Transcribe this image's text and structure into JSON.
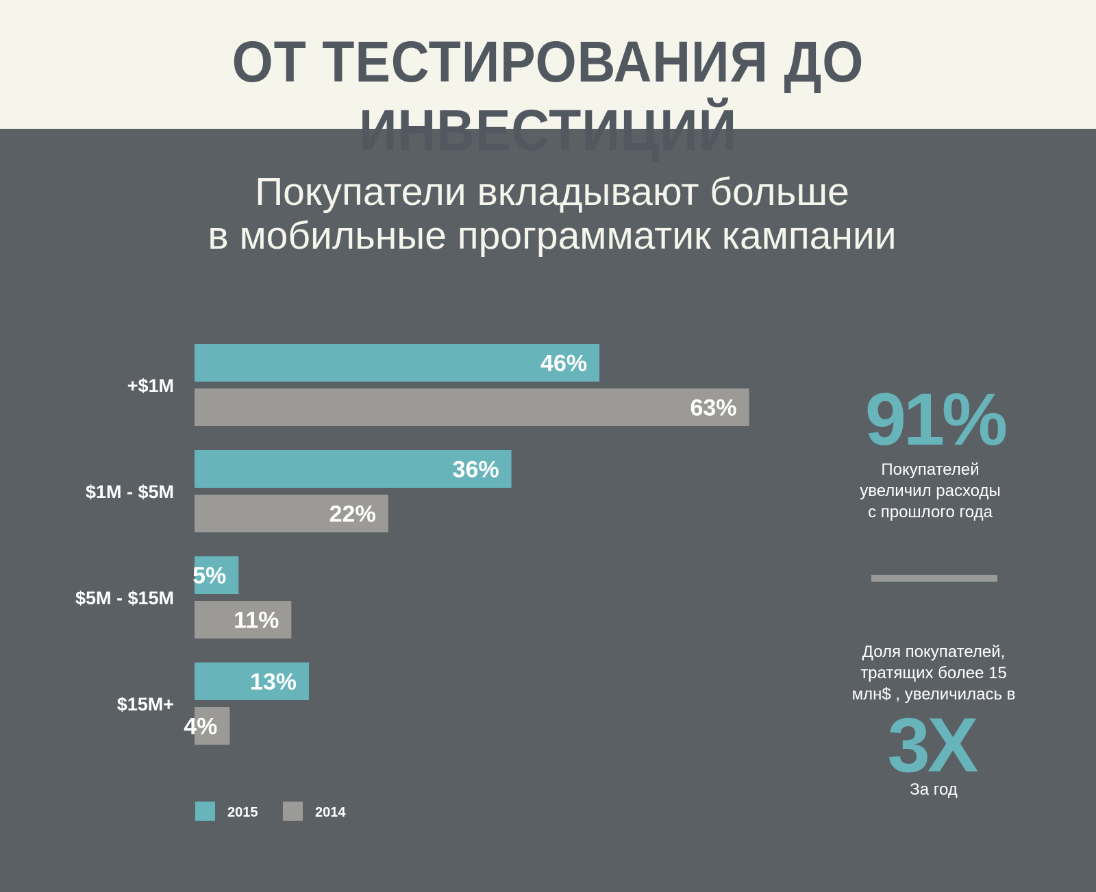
{
  "header": {
    "title": "ОТ ТЕСТИРОВАНИЯ ДО ИНВЕСТИЦИЙ"
  },
  "subtitle": {
    "line1": "Покупатели вкладывают больше",
    "line2": "в мобильные программатик кампании"
  },
  "colors": {
    "header_bg": "#f5f5ec",
    "page_bg": "#5b6065",
    "series_2015": "#67b4bb",
    "series_2014": "#9b9a96"
  },
  "chart_data": {
    "type": "bar",
    "orientation": "horizontal",
    "categories": [
      "+$1M",
      "$1M - $5M",
      "$5M - $15M",
      "$15M+"
    ],
    "series": [
      {
        "name": "2015",
        "values": [
          46,
          36,
          5,
          13
        ],
        "labels": [
          "46%",
          "36%",
          "5%",
          "13%"
        ]
      },
      {
        "name": "2014",
        "values": [
          63,
          22,
          11,
          4
        ],
        "labels": [
          "63%",
          "22%",
          "11%",
          "4%"
        ]
      }
    ],
    "unit": "%",
    "title": "",
    "xlabel": "",
    "ylabel": "",
    "grid": false,
    "legend": "bottom-left"
  },
  "stats": {
    "big1": "91%",
    "text1_line1": "Покупателей",
    "text1_line2": "увеличил расходы",
    "text1_line3": "с прошлого года",
    "text2_line1": "Доля покупателей,",
    "text2_line2": "тратящих более 15",
    "text2_line3": "млн$ , увеличилась в",
    "big2": "3X",
    "text3": "За год"
  }
}
